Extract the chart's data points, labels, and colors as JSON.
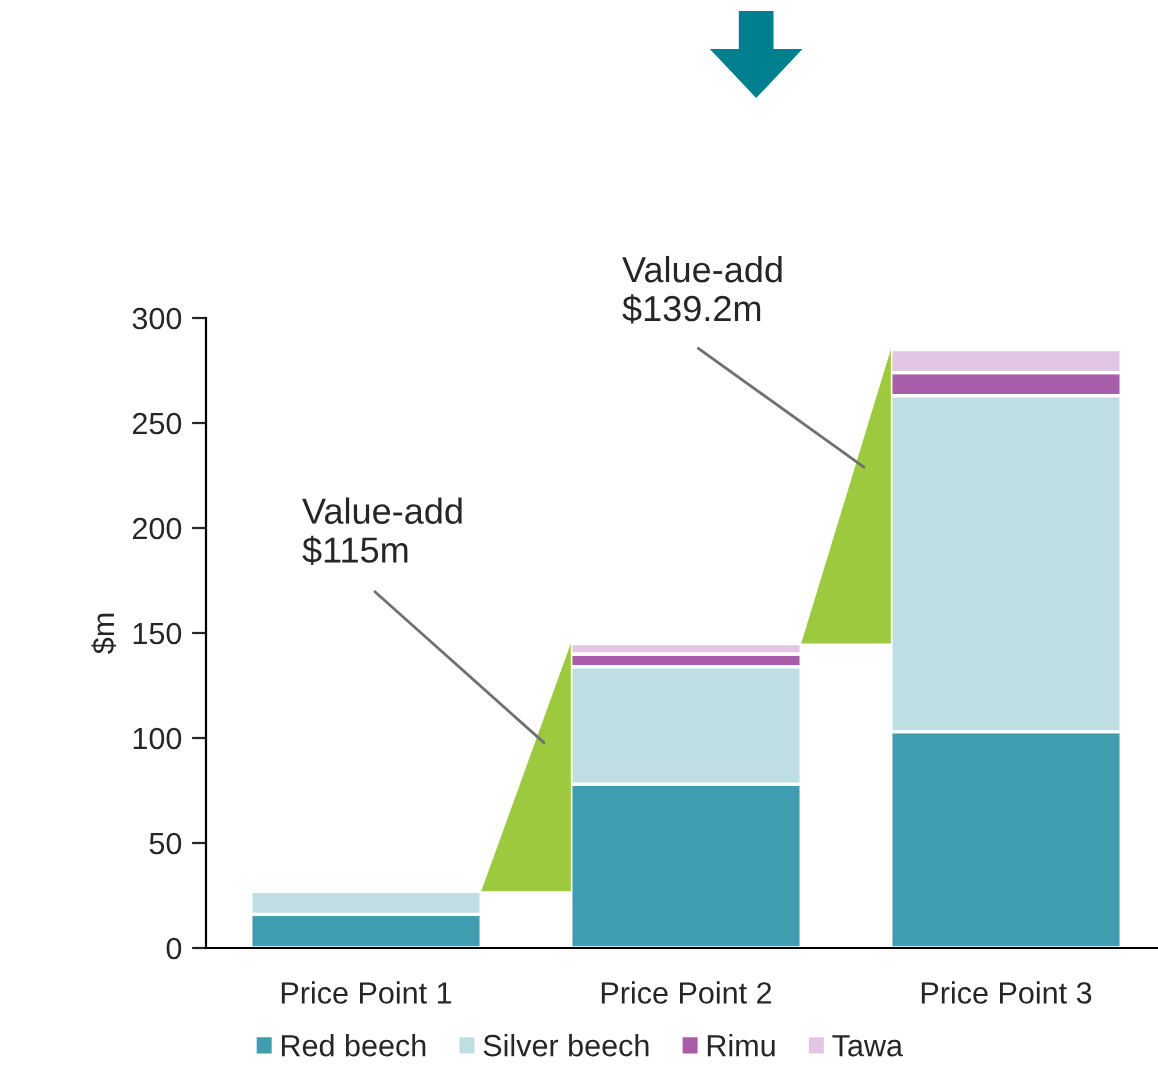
{
  "chart_data": {
    "type": "bar",
    "stacked": true,
    "ylabel": "$m",
    "categories": [
      "Price Point 1",
      "Price Point 2",
      "Price Point 3"
    ],
    "series": [
      {
        "name": "Red beech",
        "color": "#409caf",
        "values": [
          16,
          78,
          103
        ]
      },
      {
        "name": "Silver beech",
        "color": "#bfdee3",
        "values": [
          11,
          56,
          160
        ]
      },
      {
        "name": "Rimu",
        "color": "#a95caa",
        "values": [
          null,
          6,
          11
        ]
      },
      {
        "name": "Tawa",
        "color": "#e3c6e3",
        "values": [
          null,
          5,
          11
        ]
      }
    ],
    "annotations": [
      "Value-add\n$115m",
      "Value-add\n$139.2m"
    ],
    "ylim": [
      0,
      300
    ],
    "yticks": [
      0,
      50,
      100,
      150,
      200,
      250,
      300
    ],
    "grid": false,
    "legend": "bottom"
  }
}
